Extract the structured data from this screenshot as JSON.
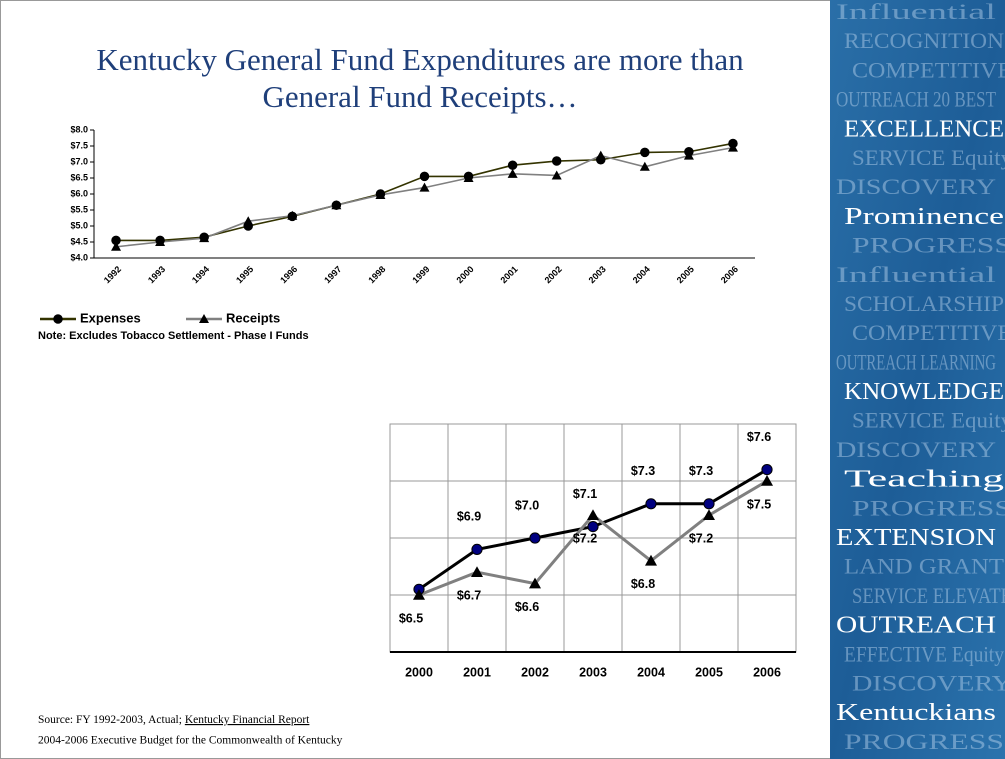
{
  "title_lines": [
    "Kentucky General Fund Expenditures are more than",
    "General Fund Receipts…"
  ],
  "chart_data": [
    {
      "type": "line",
      "categories": [
        "1992",
        "1993",
        "1994",
        "1995",
        "1996",
        "1997",
        "1998",
        "1999",
        "2000",
        "2001",
        "2002",
        "2003",
        "2004",
        "2005",
        "2006"
      ],
      "series": [
        {
          "name": "Expenses",
          "color": "#333300",
          "marker": "circle",
          "marker_color": "#000000",
          "values": [
            4.55,
            4.55,
            4.65,
            5.0,
            5.3,
            5.65,
            6.0,
            6.55,
            6.55,
            6.9,
            7.03,
            7.07,
            7.3,
            7.32,
            7.58
          ]
        },
        {
          "name": "Receipts",
          "color": "#808080",
          "marker": "triangle",
          "marker_color": "#000000",
          "values": [
            4.35,
            4.5,
            4.62,
            5.15,
            5.32,
            5.65,
            5.97,
            6.2,
            6.5,
            6.63,
            6.58,
            7.2,
            6.85,
            7.2,
            7.45
          ]
        }
      ],
      "ylim": [
        4.0,
        8.0
      ],
      "yticks": [
        {
          "value": 4.0,
          "label": "$4.0"
        },
        {
          "value": 4.5,
          "label": "$4.5"
        },
        {
          "value": 5.0,
          "label": "$5.0"
        },
        {
          "value": 5.5,
          "label": "$5.5"
        },
        {
          "value": 6.0,
          "label": "$6.0"
        },
        {
          "value": 6.5,
          "label": "$6.5"
        },
        {
          "value": 7.0,
          "label": "$7.0"
        },
        {
          "value": 7.5,
          "label": "$7.5"
        },
        {
          "value": 8.0,
          "label": "$8.0"
        }
      ],
      "grid": false,
      "legend": "bottom-left",
      "note": "Note: Excludes Tobacco Settlement - Phase I Funds"
    },
    {
      "type": "line",
      "categories": [
        "2000",
        "2001",
        "2002",
        "2003",
        "2004",
        "2005",
        "2006"
      ],
      "series": [
        {
          "name": "Expenses",
          "color": "#000000",
          "marker": "circle",
          "marker_color": "#000080",
          "values": [
            6.55,
            6.9,
            7.0,
            7.1,
            7.3,
            7.3,
            7.6
          ],
          "value_labels": [
            null,
            "$6.9",
            "$7.0",
            "$7.1",
            "$7.3",
            "$7.3",
            "$7.6"
          ]
        },
        {
          "name": "Receipts",
          "color": "#808080",
          "marker": "triangle",
          "marker_color": "#000000",
          "values": [
            6.5,
            6.7,
            6.6,
            7.2,
            6.8,
            7.2,
            7.5
          ],
          "value_labels": [
            "$6.5",
            "$6.7",
            "$6.6",
            "$7.2",
            "$6.8",
            "$7.2",
            "$7.5"
          ]
        }
      ],
      "ylim": [
        6.0,
        8.0
      ],
      "yticks": [
        6.0,
        6.5,
        7.0,
        7.5,
        8.0
      ],
      "grid": true
    }
  ],
  "source": {
    "prefix": "Source: FY 1992-2003, Actual; ",
    "link": "Kentucky Financial Report",
    "line2": "2004-2006 Executive Budget for the Commonwealth of Kentucky"
  },
  "side_panel": [
    {
      "text": "Influential",
      "bright": false
    },
    {
      "text": "RECOGNITION",
      "bright": false
    },
    {
      "text": "COMPETITIVE",
      "bright": false
    },
    {
      "text": "OUTREACH  20 BEST",
      "bright": false
    },
    {
      "text": "EXCELLENCE",
      "bright": true
    },
    {
      "text": "SERVICE  Equity",
      "bright": false
    },
    {
      "text": "DISCOVERY",
      "bright": false
    },
    {
      "text": "Prominence",
      "bright": true
    },
    {
      "text": "PROGRESS",
      "bright": false
    },
    {
      "text": "Influential",
      "bright": false
    },
    {
      "text": "SCHOLARSHIP",
      "bright": false
    },
    {
      "text": "COMPETITIVE",
      "bright": false
    },
    {
      "text": "OUTREACH LEARNING",
      "bright": false
    },
    {
      "text": "KNOWLEDGE",
      "bright": true
    },
    {
      "text": "SERVICE  Equity",
      "bright": false
    },
    {
      "text": "DISCOVERY",
      "bright": false
    },
    {
      "text": "Teaching",
      "bright": true
    },
    {
      "text": "PROGRESS",
      "bright": false
    },
    {
      "text": "EXTENSION",
      "bright": true
    },
    {
      "text": "LAND GRANT",
      "bright": false
    },
    {
      "text": "SERVICE ELEVATE",
      "bright": false
    },
    {
      "text": "OUTREACH",
      "bright": true
    },
    {
      "text": "EFFECTIVE  Equity",
      "bright": false
    },
    {
      "text": "DISCOVERY",
      "bright": false
    },
    {
      "text": "Kentuckians",
      "bright": true
    },
    {
      "text": "PROGRESS",
      "bright": false
    }
  ]
}
